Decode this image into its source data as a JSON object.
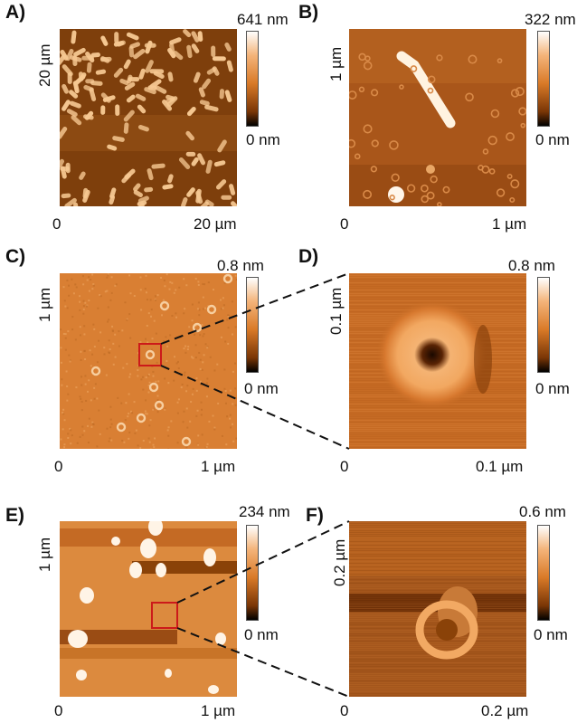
{
  "panels": [
    {
      "letter": "A)",
      "scale_top": "641 nm",
      "scale_bottom": "0 nm",
      "y_axis": "20 µm",
      "x_start": "0",
      "x_end": "20 µm"
    },
    {
      "letter": "B)",
      "scale_top": "322 nm",
      "scale_bottom": "0 nm",
      "y_axis": "1 µm",
      "x_start": "0",
      "x_end": "1 µm"
    },
    {
      "letter": "C)",
      "scale_top": "0.8 nm",
      "scale_bottom": "0 nm",
      "y_axis": "1 µm",
      "x_start": "0",
      "x_end": "1 µm"
    },
    {
      "letter": "D)",
      "scale_top": "0.8 nm",
      "scale_bottom": "0 nm",
      "y_axis": "0.1 µm",
      "x_start": "0",
      "x_end": "0.1 µm"
    },
    {
      "letter": "E)",
      "scale_top": "234 nm",
      "scale_bottom": "0 nm",
      "y_axis": "1 µm",
      "x_start": "0",
      "x_end": "1 µm"
    },
    {
      "letter": "F)",
      "scale_top": "0.6 nm",
      "scale_bottom": "0 nm",
      "y_axis": "0.2 µm",
      "x_start": "0",
      "x_end": "0.2 µm"
    }
  ],
  "colors": {
    "afm_dark": "#8a4208",
    "afm_mid": "#c8691e",
    "afm_light": "#f0b070",
    "inset_box": "#cc1a1a"
  }
}
